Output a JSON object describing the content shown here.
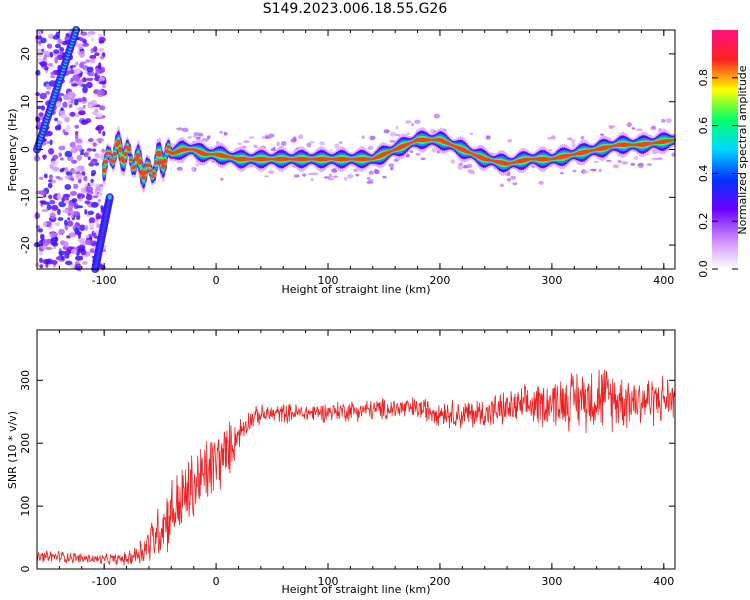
{
  "title": "S149.2023.006.18.55.G26",
  "colors": {
    "snr_line": "#ee2222",
    "colormap": [
      "#ffffff",
      "#cc88ff",
      "#6a00ff",
      "#0033ff",
      "#00d8ff",
      "#00ff66",
      "#ffff00",
      "#ff2222",
      "#ff1080"
    ]
  },
  "chart_data": [
    {
      "type": "heatmap",
      "title": "S149.2023.006.18.55.G26",
      "xlabel": "Height of straight line (km)",
      "ylabel": "Frequency (Hz)",
      "xlim": [
        -160,
        410
      ],
      "ylim": [
        -25,
        25
      ],
      "xticks": [
        -100,
        0,
        100,
        200,
        300,
        400
      ],
      "yticks": [
        -20,
        -10,
        0,
        10,
        20
      ],
      "colorbar": {
        "label": "Normalized spectral amplitude",
        "range": [
          0,
          1
        ],
        "ticks": [
          0.0,
          0.2,
          0.4,
          0.6,
          0.8
        ]
      },
      "ridge": {
        "x": [
          -98,
          -90,
          -80,
          -70,
          -60,
          -50,
          -40,
          -30,
          -20,
          -10,
          0,
          20,
          40,
          60,
          80,
          100,
          120,
          140,
          150,
          160,
          170,
          180,
          200,
          210,
          220,
          230,
          240,
          260,
          280,
          300,
          320,
          340,
          360,
          380,
          410
        ],
        "y": [
          -3,
          0,
          -1,
          -3,
          -5,
          -2,
          -1,
          0,
          0,
          -1,
          -1,
          -2,
          -2,
          -2,
          -2,
          -2,
          -2,
          -2,
          -1,
          0,
          1,
          2,
          2,
          1,
          0,
          -1,
          -2,
          -3,
          -2,
          -2,
          -1,
          0,
          1,
          1,
          2
        ]
      },
      "aliases": [
        {
          "x": [
            -160,
            -125
          ],
          "y": [
            0,
            25
          ]
        },
        {
          "x": [
            -108,
            -95
          ],
          "y": [
            -25,
            -10
          ]
        }
      ]
    },
    {
      "type": "line",
      "title": "",
      "xlabel": "Height of straight line (km)",
      "ylabel": "SNR (10 * v/v)",
      "xlim": [
        -160,
        410
      ],
      "ylim": [
        0,
        380
      ],
      "xticks": [
        -100,
        0,
        100,
        200,
        300,
        400
      ],
      "yticks": [
        0,
        100,
        200,
        300
      ],
      "series": [
        {
          "name": "",
          "x": [
            -160,
            -140,
            -120,
            -100,
            -80,
            -70,
            -60,
            -50,
            -40,
            -30,
            -20,
            -10,
            0,
            10,
            20,
            30,
            40,
            60,
            80,
            100,
            120,
            140,
            160,
            180,
            200,
            220,
            240,
            260,
            280,
            300,
            320,
            340,
            360,
            380,
            400,
            410
          ],
          "values": [
            18,
            20,
            17,
            15,
            16,
            25,
            40,
            65,
            90,
            110,
            130,
            150,
            170,
            185,
            215,
            238,
            245,
            248,
            248,
            250,
            252,
            253,
            255,
            255,
            250,
            245,
            248,
            255,
            260,
            265,
            270,
            275,
            270,
            268,
            270,
            270
          ],
          "spread": [
            12,
            12,
            10,
            10,
            12,
            25,
            40,
            55,
            65,
            70,
            70,
            70,
            65,
            55,
            30,
            20,
            18,
            18,
            18,
            18,
            20,
            20,
            22,
            22,
            25,
            28,
            30,
            32,
            38,
            45,
            55,
            65,
            55,
            50,
            45,
            40
          ]
        }
      ]
    }
  ]
}
